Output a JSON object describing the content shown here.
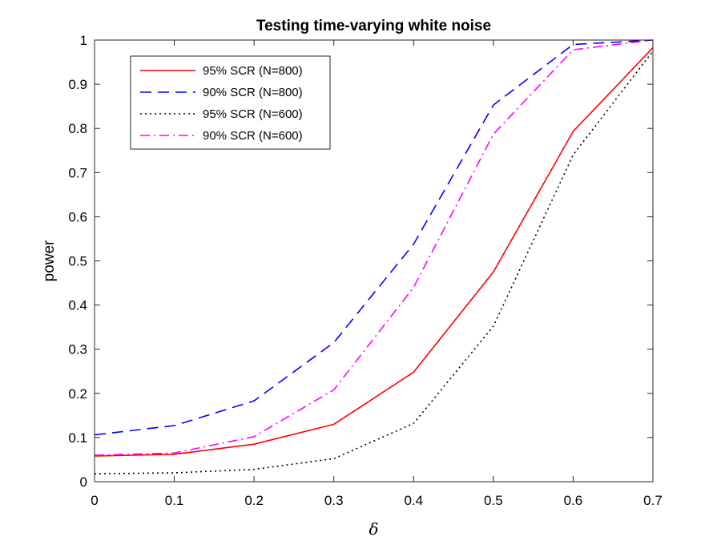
{
  "chart_data": {
    "type": "line",
    "title": "Testing time-varying white noise",
    "xlabel": "δ",
    "ylabel": "power",
    "xlim": [
      0,
      0.7
    ],
    "ylim": [
      0,
      1
    ],
    "x": [
      0,
      0.1,
      0.2,
      0.3,
      0.4,
      0.5,
      0.6,
      0.7
    ],
    "xticks": [
      "0",
      "0.1",
      "0.2",
      "0.3",
      "0.4",
      "0.5",
      "0.6",
      "0.7"
    ],
    "yticks": [
      "0",
      "0.1",
      "0.2",
      "0.3",
      "0.4",
      "0.5",
      "0.6",
      "0.7",
      "0.8",
      "0.9",
      "1"
    ],
    "legend_position": "top-left",
    "series": [
      {
        "name": "95% SCR (N=800)",
        "color": "#ff0000",
        "style": "solid",
        "values": [
          0.058,
          0.062,
          0.085,
          0.13,
          0.248,
          0.475,
          0.793,
          0.983
        ]
      },
      {
        "name": "90% SCR (N=800)",
        "color": "#0000ff",
        "style": "dashed",
        "values": [
          0.106,
          0.127,
          0.183,
          0.315,
          0.538,
          0.853,
          0.99,
          1.0
        ]
      },
      {
        "name": "95% SCR (N=600)",
        "color": "#000000",
        "style": "dotted",
        "values": [
          0.018,
          0.02,
          0.028,
          0.052,
          0.132,
          0.352,
          0.74,
          0.975
        ]
      },
      {
        "name": "90% SCR (N=600)",
        "color": "#ff00ff",
        "style": "dashdot",
        "values": [
          0.06,
          0.065,
          0.102,
          0.208,
          0.44,
          0.787,
          0.978,
          1.0
        ]
      }
    ]
  }
}
